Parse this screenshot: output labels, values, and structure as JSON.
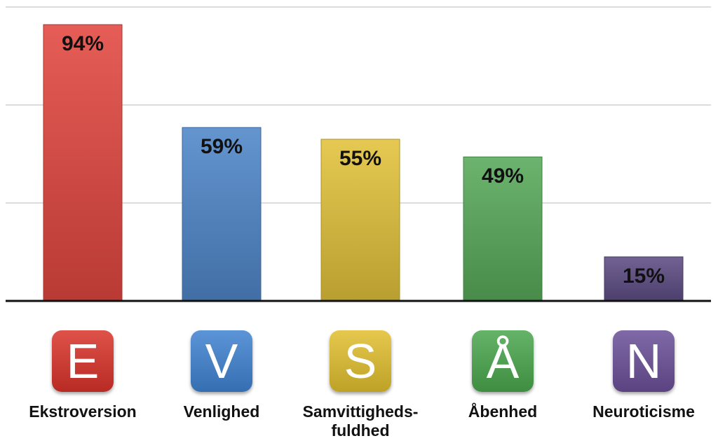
{
  "chart_data": {
    "type": "bar",
    "categories": [
      "Ekstroversion",
      "Venlighed",
      "Samvittigheds-fuldhed",
      "Åbenhed",
      "Neuroticisme"
    ],
    "category_lines": [
      [
        "Ekstroversion"
      ],
      [
        "Venlighed"
      ],
      [
        "Samvittigheds-",
        "fuldhed"
      ],
      [
        "Åbenhed"
      ],
      [
        "Neuroticisme"
      ]
    ],
    "letters": [
      "E",
      "V",
      "S",
      "Å",
      "N"
    ],
    "values": [
      94,
      59,
      55,
      49,
      15
    ],
    "value_labels": [
      "94%",
      "59%",
      "55%",
      "49%",
      "15%"
    ],
    "ylim": [
      0,
      100
    ],
    "gridlines": [
      33.33,
      66.67,
      100
    ],
    "grid": true,
    "colors": [
      "#e2473f",
      "#4f86c9",
      "#e2c23a",
      "#58aa5a",
      "#5e4d84"
    ],
    "tile_colors": [
      "#d8332a",
      "#3f82d0",
      "#e0be2e",
      "#4aa64d",
      "#6a4f97"
    ]
  }
}
